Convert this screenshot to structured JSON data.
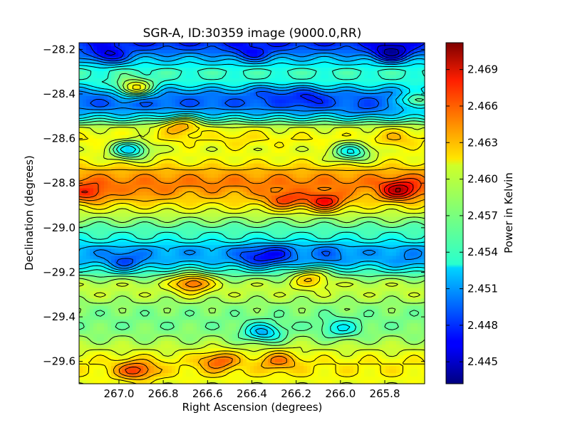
{
  "chart_data": {
    "type": "heatmap",
    "title": "SGR-A, ID:30359 image (9000.0,RR)",
    "xlabel": "Right Ascension (degrees)",
    "ylabel": "Declination (degrees)",
    "colorbar_label": "Power in Kelvin",
    "colormap": "jet",
    "contours": true,
    "x_inverted": true,
    "xlim": [
      267.18,
      265.62
    ],
    "ylim": [
      -29.7,
      -28.17
    ],
    "zlim": [
      2.4432,
      2.4712
    ],
    "x_ticks": [
      267.0,
      266.8,
      266.6,
      266.4,
      266.2,
      266.0,
      265.8
    ],
    "x_tick_labels": [
      "267.0",
      "266.8",
      "266.6",
      "266.4",
      "266.2",
      "266.0",
      "265.8"
    ],
    "y_ticks": [
      -28.2,
      -28.4,
      -28.6,
      -28.8,
      -29.0,
      -29.2,
      -29.4,
      -29.6
    ],
    "y_tick_labels": [
      "−28.2",
      "−28.4",
      "−28.6",
      "−28.8",
      "−29.0",
      "−29.2",
      "−29.4",
      "−29.6"
    ],
    "colorbar_ticks": [
      2.445,
      2.448,
      2.451,
      2.454,
      2.457,
      2.46,
      2.463,
      2.466,
      2.469
    ],
    "colorbar_tick_labels": [
      "2.445",
      "2.448",
      "2.451",
      "2.454",
      "2.457",
      "2.460",
      "2.463",
      "2.466",
      "2.469"
    ],
    "dec_profile": {
      "dec": [
        -28.17,
        -28.2,
        -28.25,
        -28.3,
        -28.35,
        -28.4,
        -28.45,
        -28.5,
        -28.55,
        -28.6,
        -28.65,
        -28.7,
        -28.75,
        -28.8,
        -28.85,
        -28.9,
        -28.95,
        -29.0,
        -29.05,
        -29.1,
        -29.15,
        -29.2,
        -29.25,
        -29.3,
        -29.35,
        -29.4,
        -29.45,
        -29.5,
        -29.55,
        -29.6,
        -29.65,
        -29.7
      ],
      "value": [
        2.4475,
        2.449,
        2.4525,
        2.4555,
        2.4545,
        2.45,
        2.449,
        2.453,
        2.4595,
        2.461,
        2.46,
        2.4605,
        2.463,
        2.4645,
        2.463,
        2.461,
        2.4585,
        2.456,
        2.4545,
        2.451,
        2.4515,
        2.4555,
        2.459,
        2.459,
        2.4575,
        2.457,
        2.457,
        2.458,
        2.4595,
        2.461,
        2.461,
        2.46
      ]
    },
    "features": [
      {
        "ra": 265.77,
        "dec": -28.21,
        "value": 2.4435
      },
      {
        "ra": 267.05,
        "dec": -28.22,
        "value": 2.4455
      },
      {
        "ra": 266.4,
        "dec": -28.21,
        "value": 2.4465
      },
      {
        "ra": 266.15,
        "dec": -28.42,
        "value": 2.447
      },
      {
        "ra": 266.32,
        "dec": -28.41,
        "value": 2.4485
      },
      {
        "ra": 265.9,
        "dec": -28.45,
        "value": 2.449
      },
      {
        "ra": 266.93,
        "dec": -28.37,
        "value": 2.4615
      },
      {
        "ra": 265.65,
        "dec": -28.43,
        "value": 2.4575
      },
      {
        "ra": 267.13,
        "dec": -28.84,
        "value": 2.467
      },
      {
        "ra": 265.73,
        "dec": -28.83,
        "value": 2.47
      },
      {
        "ra": 266.07,
        "dec": -28.88,
        "value": 2.468
      },
      {
        "ra": 266.25,
        "dec": -28.87,
        "value": 2.4665
      },
      {
        "ra": 266.88,
        "dec": -28.83,
        "value": 2.4645
      },
      {
        "ra": 266.95,
        "dec": -28.65,
        "value": 2.4525
      },
      {
        "ra": 265.95,
        "dec": -28.66,
        "value": 2.4535
      },
      {
        "ra": 266.28,
        "dec": -29.12,
        "value": 2.448
      },
      {
        "ra": 266.05,
        "dec": -29.12,
        "value": 2.4495
      },
      {
        "ra": 266.38,
        "dec": -29.13,
        "value": 2.4475
      },
      {
        "ra": 266.97,
        "dec": -29.15,
        "value": 2.4485
      },
      {
        "ra": 265.7,
        "dec": -29.14,
        "value": 2.4505
      },
      {
        "ra": 266.67,
        "dec": -29.25,
        "value": 2.4655
      },
      {
        "ra": 266.13,
        "dec": -29.23,
        "value": 2.4625
      },
      {
        "ra": 266.35,
        "dec": -29.47,
        "value": 2.4515
      },
      {
        "ra": 266.92,
        "dec": -29.64,
        "value": 2.4665
      },
      {
        "ra": 266.55,
        "dec": -29.6,
        "value": 2.4655
      },
      {
        "ra": 266.28,
        "dec": -29.6,
        "value": 2.4645
      },
      {
        "ra": 266.72,
        "dec": -28.55,
        "value": 2.4635
      },
      {
        "ra": 266.45,
        "dec": -28.6,
        "value": 2.4615
      },
      {
        "ra": 266.0,
        "dec": -29.45,
        "value": 2.4535
      },
      {
        "ra": 265.75,
        "dec": -28.6,
        "value": 2.4625
      }
    ]
  }
}
